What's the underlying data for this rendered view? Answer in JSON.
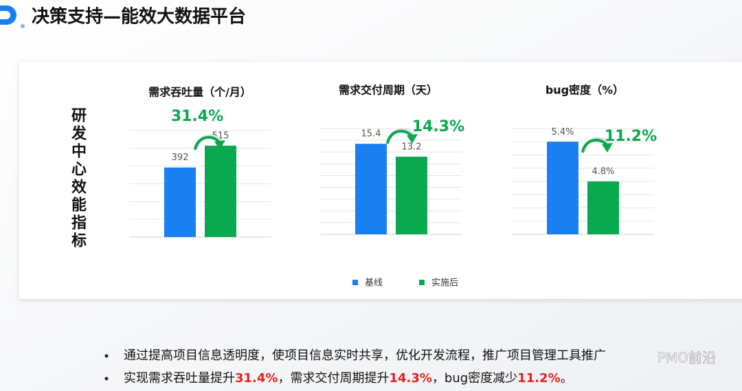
{
  "header": {
    "title": "决策支持—能效大数据平台"
  },
  "side_label": "研发中心效能指标",
  "legend": [
    {
      "name": "基线",
      "color": "#1a7ff0"
    },
    {
      "name": "实施后",
      "color": "#0aa84f"
    }
  ],
  "chart_data": [
    {
      "type": "bar",
      "title": "需求吞吐量（个/月）",
      "values": [
        392,
        515
      ],
      "annotation": "31.4%",
      "ylim": [
        0,
        600
      ],
      "yticks": [
        0,
        100,
        200,
        300,
        400,
        500,
        600
      ],
      "grid": true
    },
    {
      "type": "bar",
      "title": "需求交付周期（天）",
      "values": [
        15.4,
        13.2
      ],
      "annotation": "14.3%",
      "ylim": [
        0,
        18
      ],
      "yticks": [
        0,
        2,
        4,
        6,
        8,
        10,
        12,
        14,
        16,
        18
      ],
      "grid": true
    },
    {
      "type": "bar",
      "title": "bug密度（%）",
      "values": [
        5.4,
        4.8
      ],
      "value_labels": [
        "5.4%",
        "4.8%"
      ],
      "annotation": "11.2%",
      "ylim": [
        4,
        5.6
      ],
      "yticks": [
        4,
        4.2,
        4.4,
        4.6,
        4.8,
        5,
        5.2,
        5.4,
        5.6
      ],
      "grid": true
    }
  ],
  "bullets": [
    {
      "parts": [
        "通过提高项目信息透明度，使项目信息实时共享，优化开发流程，推广项目管理工具推广"
      ]
    },
    {
      "parts": [
        "实现需求吞吐量提升",
        "31.4%",
        "，需求交付周期提升",
        "14.3%",
        "，bug密度减少",
        "11.2%",
        "。"
      ]
    }
  ],
  "watermark": "PMO前沿"
}
